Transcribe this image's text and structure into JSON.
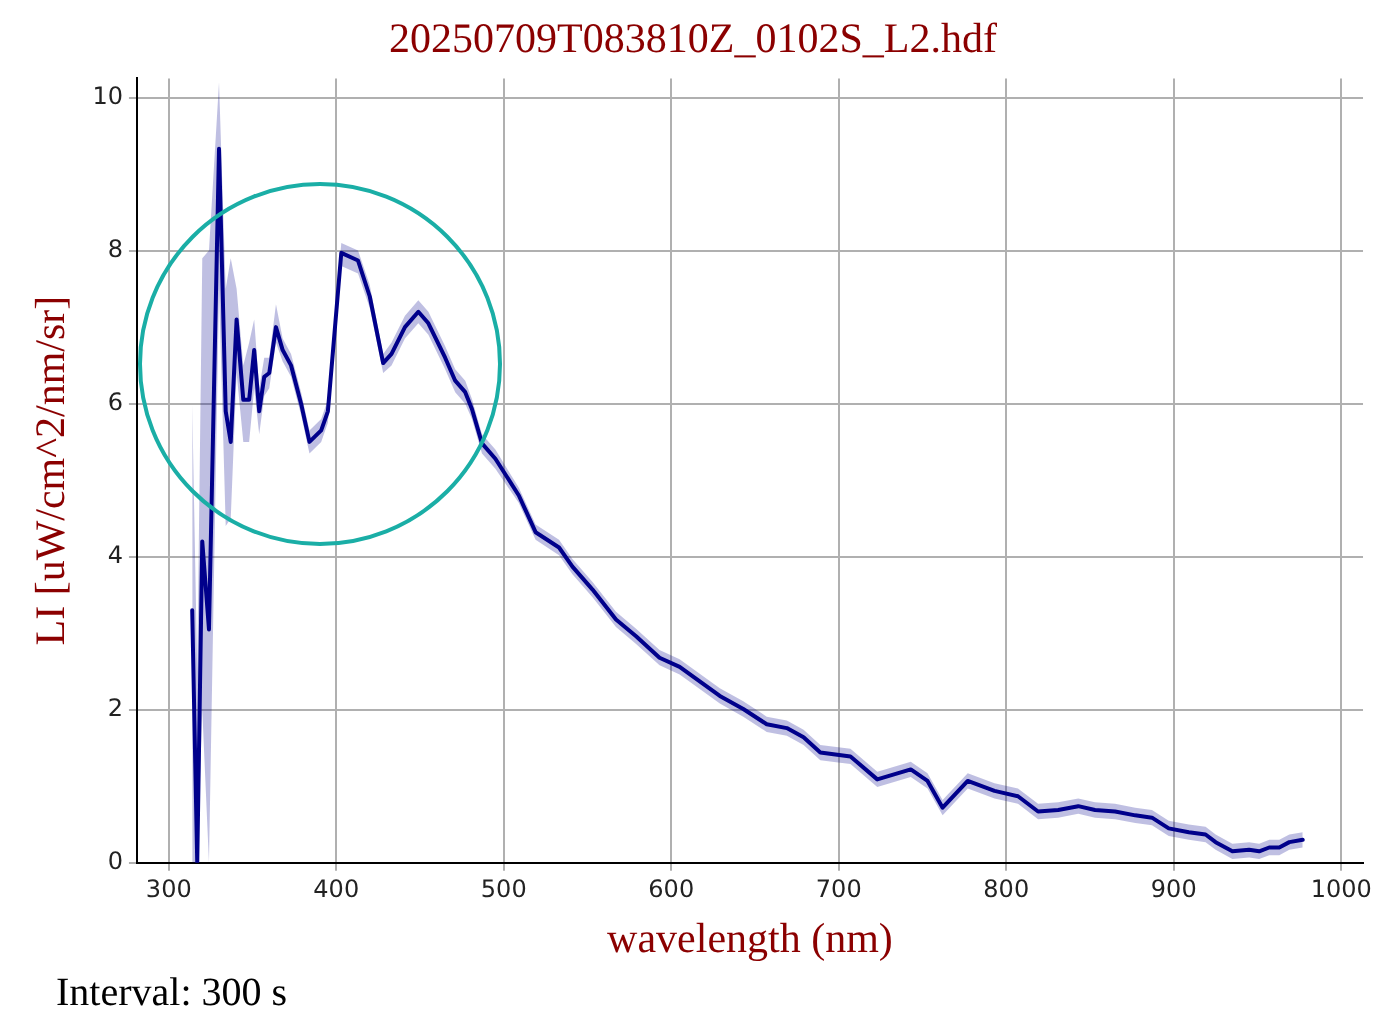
{
  "chart_data": {
    "type": "line",
    "title": "20250709T083810Z_0102S_L2.hdf",
    "xlabel": "wavelength (nm)",
    "ylabel": "LI [uW/cm^2/nm/sr]",
    "annotations": [
      "Interval: 300 s"
    ],
    "xlim": [
      281,
      1013
    ],
    "ylim": [
      0,
      10.25
    ],
    "xticks": [
      300,
      400,
      500,
      600,
      700,
      800,
      900,
      1000
    ],
    "yticks": [
      0,
      2,
      4,
      6,
      8,
      10
    ],
    "grid": true,
    "legend": false,
    "marker": "none",
    "line_style": "solid",
    "series": [
      {
        "color": "#00008b",
        "x": [
          314,
          317,
          320,
          324,
          330,
          334,
          337,
          340.5,
          344.5,
          348,
          351,
          354,
          357,
          360,
          364,
          368,
          373,
          379,
          384,
          391,
          395,
          403,
          413,
          420,
          428,
          433,
          441,
          449,
          455,
          465,
          471,
          477,
          481,
          487,
          495,
          509,
          519,
          533,
          541,
          553,
          567,
          579,
          593,
          605,
          629,
          643,
          657,
          669,
          679,
          689,
          707,
          723,
          743,
          753,
          762,
          777,
          793,
          807,
          819,
          831,
          843,
          853,
          865,
          877,
          887,
          897,
          909,
          919,
          925,
          935,
          945,
          951,
          957,
          963,
          969,
          977
        ],
        "values": [
          3.3,
          0,
          4.2,
          3.05,
          9.33,
          5.9,
          5.5,
          7.1,
          6.05,
          6.05,
          6.7,
          5.9,
          6.35,
          6.4,
          7.0,
          6.7,
          6.5,
          6.0,
          5.5,
          5.65,
          5.9,
          7.97,
          7.87,
          7.4,
          6.53,
          6.65,
          7.0,
          7.2,
          7.05,
          6.6,
          6.3,
          6.15,
          5.93,
          5.48,
          5.28,
          4.8,
          4.32,
          4.12,
          3.87,
          3.57,
          3.18,
          2.96,
          2.68,
          2.56,
          2.18,
          2.01,
          1.81,
          1.76,
          1.64,
          1.44,
          1.39,
          1.09,
          1.22,
          1.07,
          0.72,
          1.07,
          0.94,
          0.87,
          0.67,
          0.69,
          0.74,
          0.69,
          0.67,
          0.62,
          0.59,
          0.45,
          0.4,
          0.37,
          0.27,
          0.15,
          0.17,
          0.15,
          0.2,
          0.2,
          0.27,
          0.3
        ],
        "lower": [
          0,
          0,
          2,
          0,
          7.5,
          4.4,
          4.5,
          6.4,
          5.5,
          5.5,
          6.2,
          5.6,
          6.1,
          6.2,
          6.8,
          6.55,
          6.35,
          5.85,
          5.35,
          5.5,
          5.75,
          7.8,
          7.7,
          7.25,
          6.4,
          6.5,
          6.85,
          7.05,
          6.9,
          6.45,
          6.15,
          6.0,
          5.8,
          5.35,
          5.15,
          4.7,
          4.22,
          4.02,
          3.77,
          3.47,
          3.08,
          2.86,
          2.58,
          2.46,
          2.08,
          1.91,
          1.71,
          1.66,
          1.54,
          1.34,
          1.29,
          0.99,
          1.12,
          0.97,
          0.62,
          0.97,
          0.84,
          0.77,
          0.57,
          0.59,
          0.64,
          0.59,
          0.57,
          0.52,
          0.49,
          0.35,
          0.3,
          0.27,
          0.17,
          0.05,
          0.07,
          0.05,
          0.1,
          0.1,
          0.17,
          0.2
        ],
        "upper": [
          6.0,
          2.5,
          7.9,
          8.0,
          10.2,
          7.5,
          7.9,
          7.5,
          6.5,
          6.8,
          7.1,
          6.2,
          6.6,
          6.6,
          7.3,
          6.85,
          6.65,
          6.15,
          5.65,
          5.8,
          6.05,
          8.1,
          8.0,
          7.55,
          6.65,
          6.8,
          7.15,
          7.35,
          7.2,
          6.75,
          6.45,
          6.3,
          6.06,
          5.6,
          5.4,
          4.9,
          4.42,
          4.22,
          3.97,
          3.67,
          3.28,
          3.06,
          2.78,
          2.66,
          2.28,
          2.11,
          1.91,
          1.86,
          1.74,
          1.54,
          1.49,
          1.19,
          1.32,
          1.17,
          0.82,
          1.17,
          1.04,
          0.97,
          0.77,
          0.79,
          0.84,
          0.79,
          0.77,
          0.72,
          0.69,
          0.55,
          0.5,
          0.47,
          0.37,
          0.25,
          0.27,
          0.25,
          0.3,
          0.3,
          0.37,
          0.4
        ]
      }
    ]
  }
}
